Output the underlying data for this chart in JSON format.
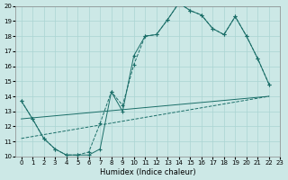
{
  "bg_color": "#cce8e6",
  "grid_color": "#aad4d2",
  "line_color": "#1a6e68",
  "xlabel": "Humidex (Indice chaleur)",
  "xlim": [
    -0.5,
    23
  ],
  "ylim": [
    10,
    20
  ],
  "yticks": [
    10,
    11,
    12,
    13,
    14,
    15,
    16,
    17,
    18,
    19,
    20
  ],
  "xticks": [
    0,
    1,
    2,
    3,
    4,
    5,
    6,
    7,
    8,
    9,
    10,
    11,
    12,
    13,
    14,
    15,
    16,
    17,
    18,
    19,
    20,
    21,
    22,
    23
  ],
  "curve1_x": [
    0,
    1,
    2,
    3,
    4,
    5,
    6,
    7,
    8,
    9,
    10,
    11,
    12,
    13,
    14,
    15,
    16,
    17,
    18,
    19,
    20,
    21,
    22
  ],
  "curve1_y": [
    13.7,
    12.5,
    11.2,
    10.5,
    10.1,
    10.1,
    10.1,
    10.5,
    14.3,
    13.0,
    16.7,
    18.0,
    18.1,
    19.1,
    20.2,
    19.7,
    19.4,
    18.5,
    18.1,
    19.3,
    18.0,
    16.5,
    14.8
  ],
  "curve2_x": [
    0,
    1,
    2,
    3,
    4,
    5,
    6,
    7,
    8,
    9,
    10,
    11,
    12,
    13,
    14,
    15,
    16,
    17,
    18,
    19,
    20,
    21,
    22
  ],
  "curve2_y": [
    13.7,
    12.5,
    11.2,
    10.5,
    10.1,
    10.1,
    10.3,
    12.2,
    14.3,
    13.4,
    16.1,
    18.0,
    18.1,
    19.1,
    20.2,
    19.7,
    19.4,
    18.5,
    18.1,
    19.3,
    18.0,
    16.5,
    14.8
  ],
  "line1_x": [
    0,
    22
  ],
  "line1_y": [
    12.5,
    14.0
  ],
  "line2_x": [
    0,
    22
  ],
  "line2_y": [
    11.2,
    14.0
  ]
}
